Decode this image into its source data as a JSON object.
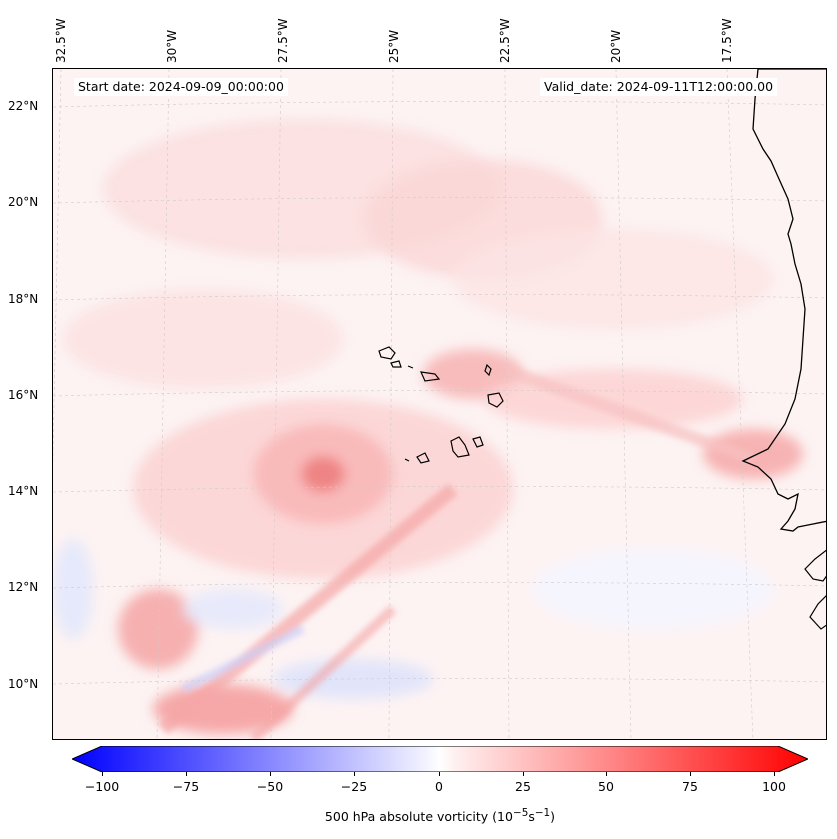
{
  "header": {
    "start_date": "Start date: 2024-09-09_00:00:00",
    "valid_date": "Valid_date: 2024-09-11T12:00:00.00"
  },
  "axes": {
    "lon_labels": [
      "32.5°W",
      "30°W",
      "27.5°W",
      "25°W",
      "22.5°W",
      "20°W",
      "17.5°W"
    ],
    "lat_labels": [
      "22°N",
      "20°N",
      "18°N",
      "16°N",
      "14°N",
      "12°N",
      "10°N"
    ]
  },
  "colorbar": {
    "ticks": [
      "−100",
      "−75",
      "−50",
      "−25",
      "0",
      "25",
      "50",
      "75",
      "100"
    ],
    "label": "500 hPa absolute vorticity (10",
    "label_exp1": "−5",
    "label_mid": "s",
    "label_exp2": "−1",
    "label_end": ")",
    "min": -100,
    "max": 100
  },
  "colors": {
    "negative_max": "#0000ff",
    "positive_max": "#ff0000",
    "neutral": "#ffffff",
    "coastline": "#000000"
  }
}
